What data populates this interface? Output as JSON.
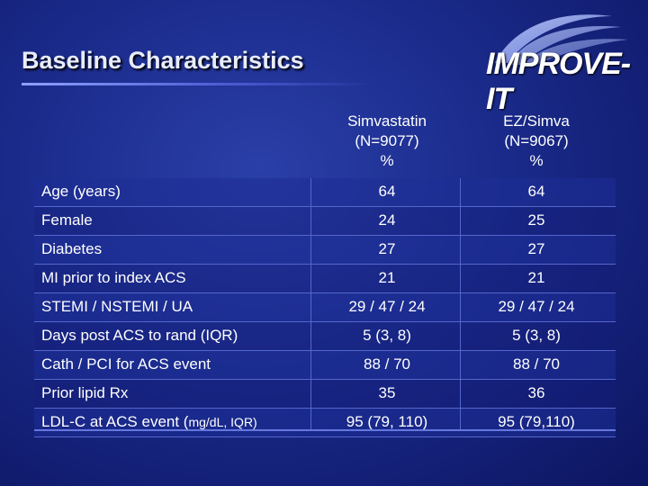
{
  "slide": {
    "title": "Baseline Characteristics",
    "logo_text": "IMPROVE-IT"
  },
  "columns": [
    {
      "name": "Simvastatin",
      "n": "(N=9077)",
      "unit": "%"
    },
    {
      "name": "EZ/Simva",
      "n": "(N=9067)",
      "unit": "%"
    }
  ],
  "rows": [
    {
      "label": "Age (years)",
      "label_suffix": "",
      "v1": "64",
      "v2": "64"
    },
    {
      "label": "Female",
      "label_suffix": "",
      "v1": "24",
      "v2": "25"
    },
    {
      "label": "Diabetes",
      "label_suffix": "",
      "v1": "27",
      "v2": "27"
    },
    {
      "label": "MI prior to index ACS",
      "label_suffix": "",
      "v1": "21",
      "v2": "21"
    },
    {
      "label": "STEMI / NSTEMI / UA",
      "label_suffix": "",
      "v1": "29 / 47 / 24",
      "v2": "29 / 47 / 24"
    },
    {
      "label": "Days post ACS to rand (IQR)",
      "label_suffix": "",
      "v1": "5 (3, 8)",
      "v2": "5 (3, 8)"
    },
    {
      "label": "Cath / PCI for ACS event",
      "label_suffix": "",
      "v1": "88 / 70",
      "v2": "88 / 70"
    },
    {
      "label": "Prior lipid Rx",
      "label_suffix": "",
      "v1": "35",
      "v2": "36"
    },
    {
      "label": "LDL-C at ACS event (",
      "label_suffix": "mg/dL, IQR)",
      "v1": "95 (79, 110)",
      "v2": "95 (79,110)"
    }
  ]
}
